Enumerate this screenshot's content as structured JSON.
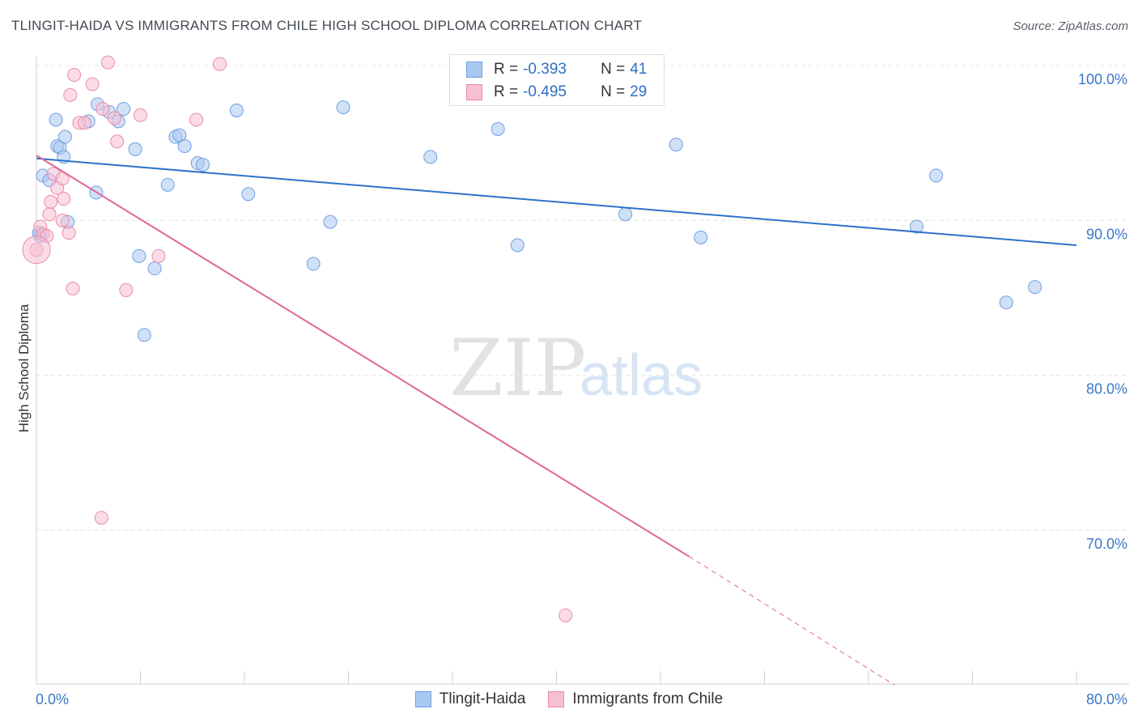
{
  "header": {
    "title": "TLINGIT-HAIDA VS IMMIGRANTS FROM CHILE HIGH SCHOOL DIPLOMA CORRELATION CHART",
    "source": "Source: ZipAtlas.com"
  },
  "watermark": {
    "zip": "ZIP",
    "atlas": "atlas"
  },
  "legend": {
    "rows": [
      {
        "r_label": "R =",
        "r_value": "-0.393",
        "n_label": "N =",
        "n_value": "41",
        "color": "#a9c8f0",
        "border": "#6f9fe0"
      },
      {
        "r_label": "R =",
        "r_value": "-0.495",
        "n_label": "N =",
        "n_value": "29",
        "color": "#f7bfd2",
        "border": "#e98aab"
      }
    ]
  },
  "bottom_legend": [
    {
      "label": "Tlingit-Haida",
      "color": "#a9c8f0",
      "border": "#6f9fe0"
    },
    {
      "label": "Immigrants from Chile",
      "color": "#f7bfd2",
      "border": "#e98aab"
    }
  ],
  "chart_data": {
    "type": "scatter",
    "title": "TLINGIT-HAIDA VS IMMIGRANTS FROM CHILE HIGH SCHOOL DIPLOMA CORRELATION CHART",
    "xlabel": "",
    "ylabel": "High School Diploma",
    "xlim": [
      0,
      80
    ],
    "ylim": [
      60,
      103
    ],
    "y_ticks": [
      {
        "value": 70,
        "label": "70.0%"
      },
      {
        "value": 80,
        "label": "80.0%"
      },
      {
        "value": 90,
        "label": "90.0%"
      },
      {
        "value": 100,
        "label": "100.0%"
      }
    ],
    "x_ticks": [
      {
        "value": 0,
        "label": "0.0%"
      },
      {
        "value": 80,
        "label": "80.0%"
      }
    ],
    "grid": true,
    "series": [
      {
        "name": "Tlingit-Haida",
        "color": "#a9c8f0",
        "edge": "#6f9fe0",
        "line_color": "#2f72c9",
        "trend": {
          "x0": 0,
          "y0": 94.0,
          "x1": 80,
          "y1": 88.4
        },
        "points": [
          [
            0.3,
            89.0
          ],
          [
            0.5,
            92.9
          ],
          [
            1.0,
            92.6
          ],
          [
            1.5,
            96.5
          ],
          [
            1.6,
            94.8
          ],
          [
            1.8,
            94.7
          ],
          [
            2.1,
            94.1
          ],
          [
            2.2,
            95.4
          ],
          [
            2.4,
            89.9
          ],
          [
            4.0,
            96.4
          ],
          [
            4.6,
            91.8
          ],
          [
            4.7,
            97.5
          ],
          [
            5.6,
            97.0
          ],
          [
            6.3,
            96.4
          ],
          [
            6.7,
            97.2
          ],
          [
            7.6,
            94.6
          ],
          [
            7.9,
            87.7
          ],
          [
            8.3,
            82.6
          ],
          [
            9.1,
            86.9
          ],
          [
            10.1,
            92.3
          ],
          [
            10.7,
            95.4
          ],
          [
            11.0,
            95.5
          ],
          [
            11.4,
            94.8
          ],
          [
            12.4,
            93.7
          ],
          [
            12.8,
            93.6
          ],
          [
            15.4,
            97.1
          ],
          [
            16.3,
            91.7
          ],
          [
            21.3,
            87.2
          ],
          [
            22.6,
            89.9
          ],
          [
            23.6,
            97.3
          ],
          [
            30.3,
            94.1
          ],
          [
            35.5,
            95.9
          ],
          [
            37.0,
            88.4
          ],
          [
            45.3,
            90.4
          ],
          [
            49.2,
            94.9
          ],
          [
            51.1,
            88.9
          ],
          [
            69.2,
            92.9
          ],
          [
            67.7,
            89.6
          ],
          [
            74.6,
            84.7
          ],
          [
            76.8,
            85.7
          ],
          [
            0.2,
            89.2
          ]
        ]
      },
      {
        "name": "Immigrants from Chile",
        "color": "#f7bfd2",
        "edge": "#e98aab",
        "line_color": "#e0669a",
        "trend": {
          "x0": 0,
          "y0": 94.2,
          "x1": 50.2,
          "y1": 68.3
        },
        "trend_dashed": {
          "x0": 50.2,
          "y0": 68.3,
          "x1": 66.0,
          "y1": 60.0
        },
        "points": [
          [
            0.0,
            88.1
          ],
          [
            0.3,
            89.6
          ],
          [
            0.5,
            89.1
          ],
          [
            0.8,
            89.0
          ],
          [
            1.0,
            90.4
          ],
          [
            1.1,
            91.2
          ],
          [
            1.3,
            93.0
          ],
          [
            1.6,
            92.1
          ],
          [
            2.0,
            92.7
          ],
          [
            2.1,
            91.4
          ],
          [
            2.0,
            90.0
          ],
          [
            2.5,
            89.2
          ],
          [
            2.6,
            98.1
          ],
          [
            2.8,
            85.6
          ],
          [
            2.9,
            99.4
          ],
          [
            3.3,
            96.3
          ],
          [
            3.7,
            96.3
          ],
          [
            4.3,
            98.8
          ],
          [
            5.0,
            70.8
          ],
          [
            5.1,
            97.2
          ],
          [
            5.5,
            100.2
          ],
          [
            6.0,
            96.6
          ],
          [
            6.2,
            95.1
          ],
          [
            6.9,
            85.5
          ],
          [
            8.0,
            96.8
          ],
          [
            9.4,
            87.7
          ],
          [
            12.3,
            96.5
          ],
          [
            14.1,
            100.1
          ],
          [
            40.7,
            64.5
          ]
        ]
      }
    ]
  }
}
